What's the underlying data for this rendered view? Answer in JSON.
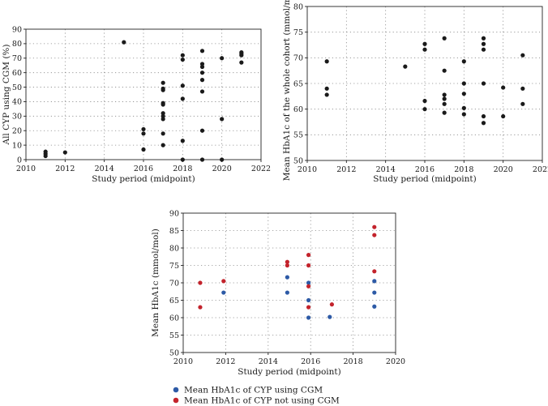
{
  "colors": {
    "black": "#1a1a1a",
    "blue": "#2d5aa6",
    "red": "#c3232c"
  },
  "chart_data": [
    {
      "type": "scatter",
      "title": "",
      "xlabel": "Study period (midpoint)",
      "ylabel": "All CYP using CGM (%)",
      "xlim": [
        2010,
        2022
      ],
      "ylim": [
        0,
        90
      ],
      "xticks": [
        "2010",
        "2012",
        "2014",
        "2016",
        "2018",
        "2020",
        "2022"
      ],
      "yticks": [
        "0",
        "10",
        "20",
        "30",
        "40",
        "50",
        "60",
        "70",
        "80",
        "90"
      ],
      "series": [
        {
          "name": "All CYP using CGM",
          "points": [
            [
              2011,
              2.5
            ],
            [
              2011,
              4
            ],
            [
              2011,
              5.5
            ],
            [
              2012,
              5
            ],
            [
              2015,
              81
            ],
            [
              2016,
              7
            ],
            [
              2016,
              18
            ],
            [
              2016,
              21
            ],
            [
              2017,
              10
            ],
            [
              2017,
              18
            ],
            [
              2017,
              28
            ],
            [
              2017,
              30
            ],
            [
              2017,
              32
            ],
            [
              2017,
              38
            ],
            [
              2017,
              39
            ],
            [
              2017,
              48
            ],
            [
              2017,
              49
            ],
            [
              2017,
              53
            ],
            [
              2018,
              0
            ],
            [
              2018,
              13
            ],
            [
              2018,
              42
            ],
            [
              2018,
              51
            ],
            [
              2018,
              69
            ],
            [
              2018,
              72
            ],
            [
              2019,
              0
            ],
            [
              2019,
              20
            ],
            [
              2019,
              47
            ],
            [
              2019,
              55
            ],
            [
              2019,
              60
            ],
            [
              2019,
              64
            ],
            [
              2019,
              66
            ],
            [
              2019,
              75
            ],
            [
              2020,
              0
            ],
            [
              2020,
              28
            ],
            [
              2020,
              70
            ],
            [
              2021,
              67
            ],
            [
              2021,
              72
            ],
            [
              2021,
              73
            ],
            [
              2021,
              74
            ]
          ]
        }
      ]
    },
    {
      "type": "scatter",
      "title": "",
      "xlabel": "Study period (midpoint)",
      "ylabel": "Mean HbA1c of the whole cohort (mmol/mol)",
      "xlim": [
        2010,
        2022
      ],
      "ylim": [
        50,
        80
      ],
      "xticks": [
        "2010",
        "2012",
        "2014",
        "2016",
        "2018",
        "2020",
        "2022"
      ],
      "yticks": [
        "50",
        "55",
        "60",
        "65",
        "70",
        "75",
        "80"
      ],
      "series": [
        {
          "name": "Mean HbA1c of the whole cohort",
          "points": [
            [
              2011,
              62.8
            ],
            [
              2011,
              64
            ],
            [
              2011,
              69.3
            ],
            [
              2015,
              68.3
            ],
            [
              2016,
              60
            ],
            [
              2016,
              61.6
            ],
            [
              2016,
              71.6
            ],
            [
              2016,
              72.7
            ],
            [
              2017,
              59.3
            ],
            [
              2017,
              61
            ],
            [
              2017,
              62
            ],
            [
              2017,
              62.8
            ],
            [
              2017,
              67.5
            ],
            [
              2017,
              73.8
            ],
            [
              2018,
              59
            ],
            [
              2018,
              60.2
            ],
            [
              2018,
              63
            ],
            [
              2018,
              65
            ],
            [
              2018,
              69.3
            ],
            [
              2019,
              57.3
            ],
            [
              2019,
              58.6
            ],
            [
              2019,
              65
            ],
            [
              2019,
              71.6
            ],
            [
              2019,
              72.7
            ],
            [
              2019,
              73.8
            ],
            [
              2020,
              58.6
            ],
            [
              2020,
              64.2
            ],
            [
              2021,
              61
            ],
            [
              2021,
              64
            ],
            [
              2021,
              70.5
            ]
          ]
        }
      ]
    },
    {
      "type": "scatter",
      "title": "",
      "xlabel": "Study period (midpoint)",
      "ylabel": "Mean HbA1c (mmol/mol)",
      "xlim": [
        2010,
        2020
      ],
      "ylim": [
        50,
        90
      ],
      "xticks": [
        "2010",
        "2012",
        "2014",
        "2016",
        "2018",
        "2020"
      ],
      "yticks": [
        "50",
        "55",
        "60",
        "65",
        "70",
        "75",
        "80",
        "85",
        "90"
      ],
      "legend": "bottom",
      "series": [
        {
          "name": "Mean HbA1c of CYP using CGM",
          "color": "blue",
          "points": [
            [
              2011.9,
              67.2
            ],
            [
              2014.9,
              71.6
            ],
            [
              2014.9,
              67.2
            ],
            [
              2015.9,
              70
            ],
            [
              2015.9,
              65
            ],
            [
              2015.9,
              60
            ],
            [
              2016.9,
              60.2
            ],
            [
              2019,
              70.5
            ],
            [
              2019,
              67.2
            ],
            [
              2019,
              63.2
            ]
          ]
        },
        {
          "name": "Mean HbA1c of CYP not using CGM",
          "color": "red",
          "points": [
            [
              2010.8,
              70
            ],
            [
              2010.8,
              63
            ],
            [
              2011.9,
              70.5
            ],
            [
              2014.9,
              76
            ],
            [
              2014.9,
              75
            ],
            [
              2015.9,
              78
            ],
            [
              2015.9,
              75
            ],
            [
              2015.9,
              69
            ],
            [
              2015.9,
              63
            ],
            [
              2017,
              63.8
            ],
            [
              2019,
              86
            ],
            [
              2019,
              83.7
            ],
            [
              2019,
              73.3
            ]
          ]
        }
      ]
    }
  ]
}
